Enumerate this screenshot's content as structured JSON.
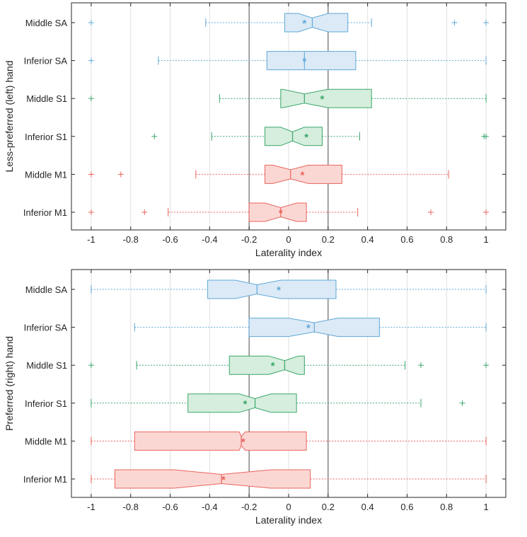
{
  "colors": {
    "SA": {
      "stroke": "#5fa8d8",
      "fill": "#dbeaf6"
    },
    "S1": {
      "stroke": "#3aa76b",
      "fill": "#d6eedd"
    },
    "M1": {
      "stroke": "#e9645d",
      "fill": "#fbd7d4"
    },
    "axis": "#262626",
    "grid": "#e1e1e1",
    "refline": "#6b6b6b"
  },
  "chart_data": [
    {
      "type": "box",
      "ylabel": "Less-preferred (left) hand",
      "xlabel": "Laterality index",
      "xlim": [
        -1.1,
        1.1
      ],
      "xticks": [
        -1,
        -0.8,
        -0.6,
        -0.4,
        -0.2,
        0,
        0.2,
        0.4,
        0.6,
        0.8,
        1
      ],
      "xtick_labels": [
        "-1",
        "-0.8",
        "-0.6",
        "-0.4",
        "-0.2",
        "0",
        "0.2",
        "0.4",
        "0.6",
        "0.8",
        "1"
      ],
      "reference_lines": [
        -0.2,
        0.2
      ],
      "grid": "vertical",
      "categories": [
        "Middle SA",
        "Inferior SA",
        "Middle S1",
        "Inferior S1",
        "Middle M1",
        "Inferior M1"
      ],
      "series": [
        {
          "group": "SA",
          "whisker_low": -0.42,
          "q1": -0.02,
          "median": 0.12,
          "q3": 0.3,
          "whisker_high": 0.42,
          "notch_low": 0.05,
          "notch_high": 0.2,
          "mean": 0.08,
          "outliers": [
            -1,
            0.84,
            1
          ]
        },
        {
          "group": "SA",
          "whisker_low": -0.66,
          "q1": -0.11,
          "median": 0.08,
          "q3": 0.34,
          "whisker_high": 1,
          "notch_low": 0.08,
          "notch_high": 0.08,
          "mean": 0.08,
          "outliers": [
            -1
          ]
        },
        {
          "group": "S1",
          "whisker_low": -0.35,
          "q1": -0.04,
          "median": 0.08,
          "q3": 0.42,
          "whisker_high": 1,
          "notch_low": -0.03,
          "notch_high": 0.2,
          "mean": 0.17,
          "outliers": [
            -1
          ]
        },
        {
          "group": "S1",
          "whisker_low": -0.39,
          "q1": -0.12,
          "median": 0.02,
          "q3": 0.17,
          "whisker_high": 0.36,
          "notch_low": -0.04,
          "notch_high": 0.08,
          "mean": 0.09,
          "outliers": [
            -0.68,
            0.99,
            1
          ]
        },
        {
          "group": "M1",
          "whisker_low": -0.47,
          "q1": -0.12,
          "median": 0.01,
          "q3": 0.27,
          "whisker_high": 0.81,
          "notch_low": -0.08,
          "notch_high": 0.1,
          "mean": 0.07,
          "outliers": [
            -1,
            -0.85
          ]
        },
        {
          "group": "M1",
          "whisker_low": -0.61,
          "q1": -0.2,
          "median": -0.04,
          "q3": 0.09,
          "whisker_high": 0.35,
          "notch_low": -0.12,
          "notch_high": 0.04,
          "mean": -0.04,
          "outliers": [
            -1,
            -0.73,
            0.72,
            1
          ]
        }
      ]
    },
    {
      "type": "box",
      "ylabel": "Preferred (right) hand",
      "xlabel": "Laterality index",
      "xlim": [
        -1.1,
        1.1
      ],
      "xticks": [
        -1,
        -0.8,
        -0.6,
        -0.4,
        -0.2,
        0,
        0.2,
        0.4,
        0.6,
        0.8,
        1
      ],
      "xtick_labels": [
        "-1",
        "-0.8",
        "-0.6",
        "-0.4",
        "-0.2",
        "0",
        "0.2",
        "0.4",
        "0.6",
        "0.8",
        "1"
      ],
      "reference_lines": [
        -0.2,
        0.2
      ],
      "grid": "vertical",
      "categories": [
        "Middle SA",
        "Inferior SA",
        "Middle S1",
        "Inferior S1",
        "Middle M1",
        "Inferior M1"
      ],
      "series": [
        {
          "group": "SA",
          "whisker_low": -1,
          "q1": -0.41,
          "median": -0.16,
          "q3": 0.24,
          "whisker_high": 1,
          "notch_low": -0.27,
          "notch_high": -0.04,
          "mean": -0.05,
          "outliers": []
        },
        {
          "group": "SA",
          "whisker_low": -0.78,
          "q1": -0.2,
          "median": 0.13,
          "q3": 0.46,
          "whisker_high": 1,
          "notch_low": 0.0,
          "notch_high": 0.25,
          "mean": 0.1,
          "outliers": []
        },
        {
          "group": "S1",
          "whisker_low": -0.77,
          "q1": -0.3,
          "median": -0.02,
          "q3": 0.08,
          "whisker_high": 0.59,
          "notch_low": -0.1,
          "notch_high": 0.05,
          "mean": -0.08,
          "outliers": [
            -1,
            0.67,
            1
          ]
        },
        {
          "group": "S1",
          "whisker_low": -1,
          "q1": -0.51,
          "median": -0.17,
          "q3": 0.04,
          "whisker_high": 0.67,
          "notch_low": -0.25,
          "notch_high": -0.09,
          "mean": -0.22,
          "outliers": [
            0.88
          ]
        },
        {
          "group": "M1",
          "whisker_low": -1,
          "q1": -0.78,
          "median": -0.24,
          "q3": 0.09,
          "whisker_high": 1,
          "notch_low": -0.25,
          "notch_high": -0.22,
          "mean": -0.23,
          "outliers": []
        },
        {
          "group": "M1",
          "whisker_low": -1,
          "q1": -0.88,
          "median": -0.34,
          "q3": 0.11,
          "whisker_high": 1,
          "notch_low": -0.58,
          "notch_high": -0.09,
          "mean": -0.33,
          "outliers": []
        }
      ]
    }
  ]
}
